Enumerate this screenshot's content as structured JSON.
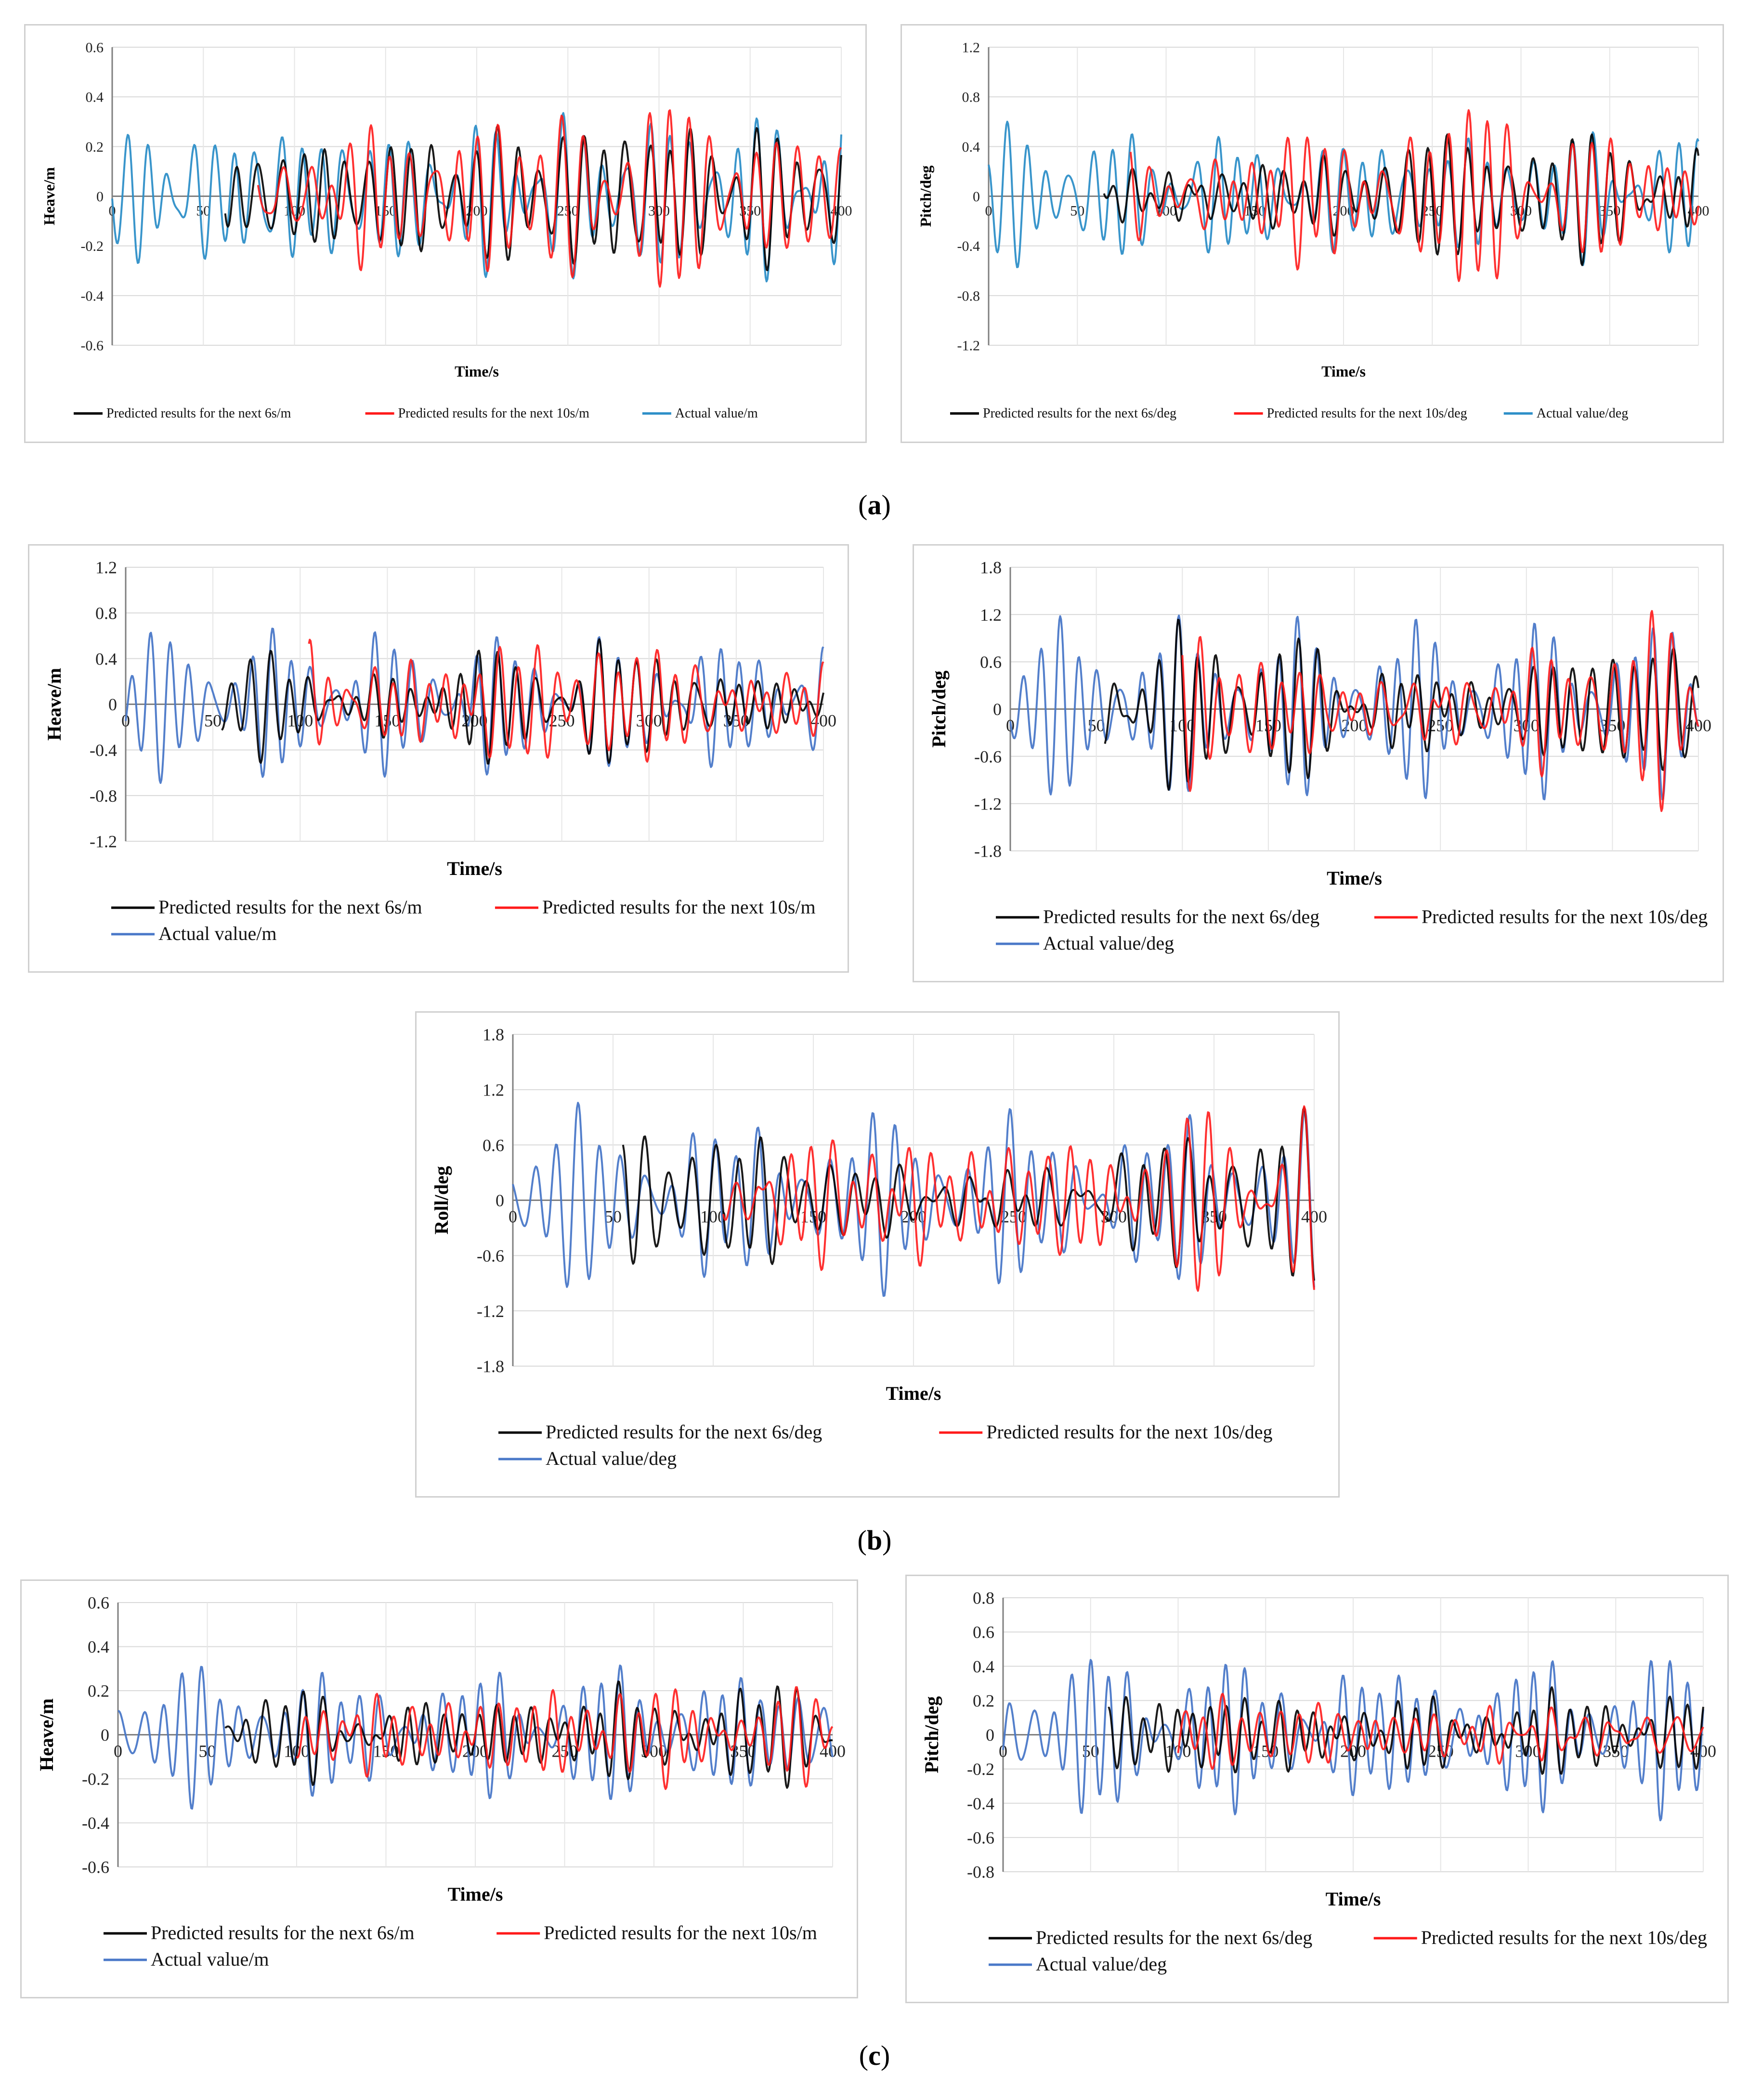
{
  "colors": {
    "predicted_6s": "#000000",
    "predicted_10s": "#ff1a1a",
    "actual": "#4a78c8",
    "actual_alt": "#2e8fc8",
    "grid": "#d9d9d9",
    "axis": "#7f7f7f"
  },
  "captions": [
    "a",
    "b",
    "c"
  ],
  "chart_data": [
    {
      "id": "a-heave",
      "type": "line",
      "title": "",
      "xlabel": "Time/s",
      "ylabel": "Heave/m",
      "xlim": [
        0,
        400
      ],
      "ylim": [
        -0.6,
        0.6
      ],
      "yticks": [
        "0.6",
        "0.4",
        "0.2",
        "0",
        "-0.2",
        "-0.4",
        "-0.6"
      ],
      "xticks": [
        "0",
        "50",
        "100",
        "150",
        "200",
        "250",
        "300",
        "350",
        "400"
      ],
      "legend": [
        "Predicted results for the next 6s/m",
        "Predicted results for the next 10s/m",
        "Actual value/m"
      ],
      "series": [
        {
          "name": "Predicted results for the next 6s/m",
          "start": 62,
          "end": 400,
          "amplitude": 0.32,
          "seed": 3
        },
        {
          "name": "Predicted results for the next 10s/m",
          "start": 80,
          "end": 400,
          "amplitude": 0.44,
          "seed": 5
        },
        {
          "name": "Actual value/m",
          "start": 0,
          "end": 400,
          "amplitude": 0.34,
          "seed": 1
        }
      ]
    },
    {
      "id": "a-pitch",
      "type": "line",
      "title": "",
      "xlabel": "Time/s",
      "ylabel": "Pitch/deg",
      "xlim": [
        0,
        400
      ],
      "ylim": [
        -1.2,
        1.2
      ],
      "yticks": [
        "1.2",
        "0.8",
        "0.4",
        "0",
        "-0.4",
        "-0.8",
        "-1.2"
      ],
      "xticks": [
        "0",
        "50",
        "100",
        "150",
        "200",
        "250",
        "300",
        "350",
        "400"
      ],
      "legend": [
        "Predicted results for the next 6s/deg",
        "Predicted results for the next 10s/deg",
        "Actual value/deg"
      ],
      "series": [
        {
          "name": "Predicted results for the next 6s/deg",
          "start": 65,
          "end": 400,
          "amplitude": 0.62,
          "seed": 7
        },
        {
          "name": "Predicted results for the next 10s/deg",
          "start": 80,
          "end": 400,
          "amplitude": 0.95,
          "seed": 9
        },
        {
          "name": "Actual value/deg",
          "start": 0,
          "end": 400,
          "amplitude": 0.55,
          "seed": 2
        }
      ]
    },
    {
      "id": "b-heave",
      "type": "line",
      "title": "",
      "xlabel": "Time/s",
      "ylabel": "Heave/m",
      "xlim": [
        0,
        400
      ],
      "ylim": [
        -1.2,
        1.2
      ],
      "yticks": [
        "1.2",
        "0.8",
        "0.4",
        "0",
        "-0.4",
        "-0.8",
        "-1.2"
      ],
      "xticks": [
        "0",
        "50",
        "100",
        "150",
        "200",
        "250",
        "300",
        "350",
        "400"
      ],
      "legend": [
        "Predicted results for the next 6s/m",
        "Predicted results for the next 10s/m",
        "Actual value/m"
      ],
      "series": [
        {
          "name": "Predicted results for the next 6s/m",
          "start": 55,
          "end": 400,
          "amplitude": 0.5,
          "seed": 11
        },
        {
          "name": "Predicted results for the next 10s/m",
          "start": 105,
          "end": 400,
          "amplitude": 0.8,
          "seed": 13
        },
        {
          "name": "Actual value/m",
          "start": 0,
          "end": 400,
          "amplitude": 0.62,
          "seed": 4
        }
      ]
    },
    {
      "id": "b-pitch",
      "type": "line",
      "title": "",
      "xlabel": "Time/s",
      "ylabel": "Pitch/deg",
      "xlim": [
        0,
        400
      ],
      "ylim": [
        -1.8,
        1.8
      ],
      "yticks": [
        "1.8",
        "1.2",
        "0.6",
        "0",
        "-0.6",
        "-1.2",
        "-1.8"
      ],
      "xticks": [
        "0",
        "50",
        "100",
        "150",
        "200",
        "250",
        "300",
        "350",
        "400"
      ],
      "legend": [
        "Predicted results for the next 6s/deg",
        "Predicted results for the next 10s/deg",
        "Actual value/deg"
      ],
      "series": [
        {
          "name": "Predicted results for the next 6s/deg",
          "start": 55,
          "end": 400,
          "amplitude": 1.0,
          "seed": 15
        },
        {
          "name": "Predicted results for the next 10s/deg",
          "start": 100,
          "end": 400,
          "amplitude": 1.35,
          "seed": 17
        },
        {
          "name": "Actual value/deg",
          "start": 0,
          "end": 400,
          "amplitude": 1.05,
          "seed": 6
        }
      ]
    },
    {
      "id": "b-roll",
      "type": "line",
      "title": "",
      "xlabel": "Time/s",
      "ylabel": "Roll/deg",
      "xlim": [
        0,
        400
      ],
      "ylim": [
        -1.8,
        1.8
      ],
      "yticks": [
        "1.8",
        "1.2",
        "0.6",
        "0",
        "-0.6",
        "-1.2",
        "-1.8"
      ],
      "xticks": [
        "0",
        "50",
        "100",
        "150",
        "200",
        "250",
        "300",
        "350",
        "400"
      ],
      "legend": [
        "Predicted results for the next 6s/deg",
        "Predicted results for the next 10s/deg",
        "Actual value/deg"
      ],
      "series": [
        {
          "name": "Predicted results for the next 6s/deg",
          "start": 55,
          "end": 400,
          "amplitude": 1.0,
          "seed": 19
        },
        {
          "name": "Predicted results for the next 10s/deg",
          "start": 105,
          "end": 400,
          "amplitude": 1.4,
          "seed": 21
        },
        {
          "name": "Actual value/deg",
          "start": 0,
          "end": 400,
          "amplitude": 0.95,
          "seed": 8
        }
      ]
    },
    {
      "id": "c-heave",
      "type": "line",
      "title": "",
      "xlabel": "Time/s",
      "ylabel": "Heave/m",
      "xlim": [
        0,
        400
      ],
      "ylim": [
        -0.6,
        0.6
      ],
      "yticks": [
        "0.6",
        "0.4",
        "0.2",
        "0",
        "-0.2",
        "-0.4",
        "-0.6"
      ],
      "xticks": [
        "0",
        "50",
        "100",
        "150",
        "200",
        "250",
        "300",
        "350",
        "400"
      ],
      "legend": [
        "Predicted results for the next 6s/m",
        "Predicted results for the next 10s/m",
        "Actual value/m"
      ],
      "series": [
        {
          "name": "Predicted results for the next 6s/m",
          "start": 60,
          "end": 400,
          "amplitude": 0.3,
          "seed": 23
        },
        {
          "name": "Predicted results for the next 10s/m",
          "start": 100,
          "end": 400,
          "amplitude": 0.42,
          "seed": 25
        },
        {
          "name": "Actual value/m",
          "start": 0,
          "end": 400,
          "amplitude": 0.3,
          "seed": 10
        }
      ]
    },
    {
      "id": "c-pitch",
      "type": "line",
      "title": "",
      "xlabel": "Time/s",
      "ylabel": "Pitch/deg",
      "xlim": [
        0,
        400
      ],
      "ylim": [
        -0.8,
        0.8
      ],
      "yticks": [
        "0.8",
        "0.6",
        "0.4",
        "0.2",
        "0",
        "-0.2",
        "-0.4",
        "-0.6",
        "-0.8"
      ],
      "xticks": [
        "0",
        "50",
        "100",
        "150",
        "200",
        "250",
        "300",
        "350",
        "400"
      ],
      "legend": [
        "Predicted results for the next 6s/deg",
        "Predicted results for the next 10s/deg",
        "Actual value/deg"
      ],
      "series": [
        {
          "name": "Predicted results for the next 6s/deg",
          "start": 60,
          "end": 400,
          "amplitude": 0.4,
          "seed": 27
        },
        {
          "name": "Predicted results for the next 10s/deg",
          "start": 100,
          "end": 400,
          "amplitude": 0.5,
          "seed": 29
        },
        {
          "name": "Actual value/deg",
          "start": 0,
          "end": 400,
          "amplitude": 0.45,
          "seed": 12
        }
      ]
    }
  ]
}
